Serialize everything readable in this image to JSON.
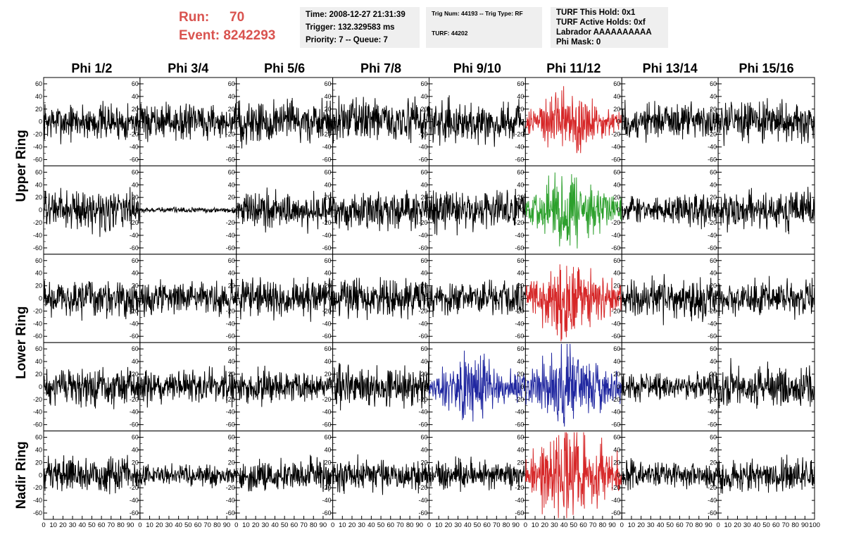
{
  "header": {
    "run_label": "Run:",
    "run_value": "70",
    "event_label": "Event:",
    "event_value": "8242293",
    "time": "Time: 2008-12-27 21:31:39",
    "trigger": "Trigger: 132.329583 ms",
    "priority": "Priority: 7 -- Queue: 7",
    "trig": "Trig Num: 44193 -- Trig Type: RF",
    "turf": "TURF: 44202",
    "turf_hold": "TURF This Hold: 0x1",
    "turf_active": "TURF Active Holds: 0xf",
    "labrador": "Labrador AAAAAAAAAA",
    "phi_mask": "Phi Mask: 0"
  },
  "chart_data": {
    "type": "line",
    "columns": [
      "Phi 1/2",
      "Phi 3/4",
      "Phi 5/6",
      "Phi 7/8",
      "Phi 9/10",
      "Phi 11/12",
      "Phi 13/14",
      "Phi 15/16"
    ],
    "rows": [
      "Upper Ring",
      "Lower Ring",
      "Nadir Ring"
    ],
    "ylim": [
      -70,
      70
    ],
    "yticks": [
      -60,
      -40,
      -20,
      0,
      20,
      40,
      60
    ],
    "xlim": [
      0,
      100
    ],
    "xticks": [
      0,
      10,
      20,
      30,
      40,
      50,
      60,
      70,
      80,
      90,
      100
    ],
    "samples": 256,
    "panels": [
      {
        "row": 0,
        "col": 0,
        "amp": 14,
        "color": "#000000"
      },
      {
        "row": 0,
        "col": 1,
        "amp": 13,
        "color": "#000000"
      },
      {
        "row": 0,
        "col": 2,
        "amp": 17,
        "color": "#000000"
      },
      {
        "row": 0,
        "col": 3,
        "amp": 16,
        "color": "#000000"
      },
      {
        "row": 0,
        "col": 4,
        "amp": 15,
        "color": "#000000"
      },
      {
        "row": 0,
        "col": 5,
        "amp": 18,
        "color": "#d62728",
        "envelope": true
      },
      {
        "row": 0,
        "col": 6,
        "amp": 14,
        "color": "#000000"
      },
      {
        "row": 0,
        "col": 7,
        "amp": 15,
        "color": "#000000"
      },
      {
        "row": 1,
        "col": 0,
        "amp": 15,
        "color": "#000000"
      },
      {
        "row": 1,
        "col": 1,
        "amp": 2,
        "color": "#000000"
      },
      {
        "row": 1,
        "col": 2,
        "amp": 14,
        "color": "#000000"
      },
      {
        "row": 1,
        "col": 3,
        "amp": 14,
        "color": "#000000"
      },
      {
        "row": 1,
        "col": 4,
        "amp": 15,
        "color": "#000000"
      },
      {
        "row": 1,
        "col": 5,
        "amp": 20,
        "color": "#2ca02c",
        "envelope": true
      },
      {
        "row": 1,
        "col": 6,
        "amp": 11,
        "color": "#000000"
      },
      {
        "row": 1,
        "col": 7,
        "amp": 14,
        "color": "#000000"
      },
      {
        "row": 2,
        "col": 0,
        "amp": 14,
        "color": "#000000"
      },
      {
        "row": 2,
        "col": 1,
        "amp": 12,
        "color": "#000000"
      },
      {
        "row": 2,
        "col": 2,
        "amp": 14,
        "color": "#000000"
      },
      {
        "row": 2,
        "col": 3,
        "amp": 15,
        "color": "#000000"
      },
      {
        "row": 2,
        "col": 4,
        "amp": 13,
        "color": "#000000"
      },
      {
        "row": 2,
        "col": 5,
        "amp": 22,
        "color": "#d62728",
        "envelope": true
      },
      {
        "row": 2,
        "col": 6,
        "amp": 15,
        "color": "#000000"
      },
      {
        "row": 2,
        "col": 7,
        "amp": 13,
        "color": "#000000"
      },
      {
        "row": 3,
        "col": 0,
        "amp": 14,
        "color": "#000000"
      },
      {
        "row": 3,
        "col": 1,
        "amp": 13,
        "color": "#000000"
      },
      {
        "row": 3,
        "col": 2,
        "amp": 12,
        "color": "#000000"
      },
      {
        "row": 3,
        "col": 3,
        "amp": 16,
        "color": "#000000"
      },
      {
        "row": 3,
        "col": 4,
        "amp": 18,
        "color": "#2027a0",
        "envelope": true
      },
      {
        "row": 3,
        "col": 5,
        "amp": 22,
        "color": "#2027a0",
        "envelope": true
      },
      {
        "row": 3,
        "col": 6,
        "amp": 10,
        "color": "#000000"
      },
      {
        "row": 3,
        "col": 7,
        "amp": 16,
        "color": "#000000"
      },
      {
        "row": 4,
        "col": 0,
        "amp": 13,
        "color": "#000000"
      },
      {
        "row": 4,
        "col": 1,
        "amp": 8,
        "color": "#000000"
      },
      {
        "row": 4,
        "col": 2,
        "amp": 12,
        "color": "#000000"
      },
      {
        "row": 4,
        "col": 3,
        "amp": 13,
        "color": "#000000"
      },
      {
        "row": 4,
        "col": 4,
        "amp": 11,
        "color": "#000000"
      },
      {
        "row": 4,
        "col": 5,
        "amp": 28,
        "color": "#d62728",
        "envelope": true
      },
      {
        "row": 4,
        "col": 6,
        "amp": 10,
        "color": "#000000"
      },
      {
        "row": 4,
        "col": 7,
        "amp": 12,
        "color": "#000000"
      }
    ]
  }
}
